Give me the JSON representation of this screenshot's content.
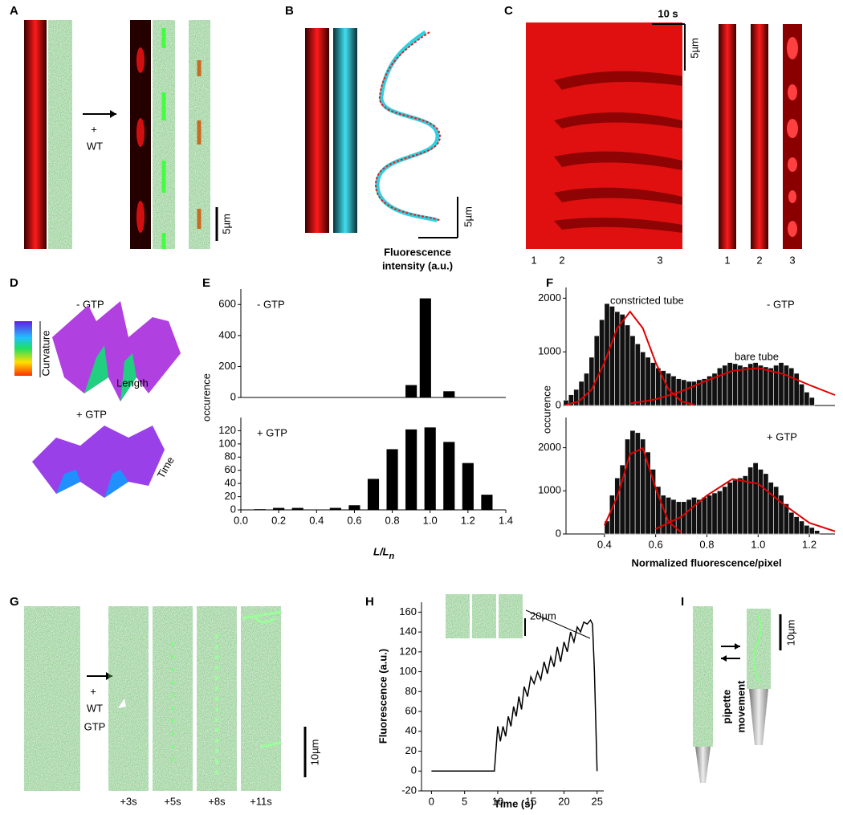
{
  "panels": {
    "a": {
      "letter": "A",
      "plus": "+",
      "treatment": "WT",
      "scale": "5µm"
    },
    "b": {
      "letter": "B",
      "scale": "5µm",
      "axis_label_1": "Fluorescence",
      "axis_label_2": "intensity (a.u.)"
    },
    "c": {
      "letter": "C",
      "time_scale": "10 s",
      "scale": "5µm",
      "kymo_marks": [
        "1",
        "2",
        "3"
      ],
      "strip_labels": [
        "1",
        "2",
        "3"
      ]
    },
    "d": {
      "letter": "D",
      "minus": "- GTP",
      "plus": "+ GTP",
      "colorbar": "Curvature",
      "length": "Length",
      "time": "Time"
    },
    "e": {
      "letter": "E",
      "ylabel": "occurence"
    },
    "f": {
      "letter": "F",
      "ylabel": "occurence"
    },
    "g": {
      "letter": "G",
      "plus": "+",
      "treatment": "WT",
      "nucleotide": "GTP",
      "scale": "10µm",
      "times": [
        "+3s",
        "+5s",
        "+8s",
        "+11s"
      ]
    },
    "h": {
      "letter": "H"
    },
    "i": {
      "letter": "I",
      "scale": "10µm",
      "caption_1": "pipette",
      "caption_2": "movement"
    }
  },
  "chart_data": [
    {
      "type": "bar",
      "annotation": "- GTP",
      "color": "#000",
      "x": [
        0.9,
        0.975,
        1.1
      ],
      "values": [
        80,
        640,
        40
      ],
      "xlim": [
        0,
        1.4
      ],
      "ylim": [
        0,
        700
      ],
      "yticks": [
        0,
        200,
        400,
        600
      ]
    },
    {
      "type": "bar",
      "annotation": "+ GTP",
      "color": "#000",
      "x": [
        0.1,
        0.2,
        0.3,
        0.5,
        0.6,
        0.7,
        0.8,
        0.9,
        1.0,
        1.1,
        1.2,
        1.3
      ],
      "values": [
        1,
        3,
        3,
        3,
        7,
        47,
        92,
        122,
        125,
        103,
        71,
        23
      ],
      "xlim": [
        0,
        1.4
      ],
      "ylim": [
        0,
        140
      ],
      "yticks": [
        0,
        20,
        40,
        60,
        80,
        100,
        120
      ],
      "xticks": [
        {
          "value": 0,
          "label": "0.0"
        },
        {
          "value": 0.2,
          "label": "0.2"
        },
        {
          "value": 0.4,
          "label": "0.4"
        },
        {
          "value": 0.6,
          "label": "0.6"
        },
        {
          "value": 0.8,
          "label": "0.8"
        },
        {
          "value": 1,
          "label": "1.0"
        },
        {
          "value": 1.2,
          "label": "1.2"
        },
        {
          "value": 1.4,
          "label": "1.4"
        }
      ],
      "xlabel": "L/L",
      "xlabel_subscript": "n"
    },
    {
      "type": "histogram",
      "annotation": "- GTP",
      "notes": [
        "constricted tube",
        "bare tube"
      ],
      "color": "#111",
      "bins": [
        0.24,
        0.26,
        0.28,
        0.3,
        0.32,
        0.34,
        0.36,
        0.38,
        0.4,
        0.42,
        0.44,
        0.46,
        0.48,
        0.5,
        0.52,
        0.54,
        0.56,
        0.58,
        0.6,
        0.62,
        0.64,
        0.66,
        0.68,
        0.7,
        0.72,
        0.74,
        0.76,
        0.78,
        0.8,
        0.82,
        0.84,
        0.86,
        0.88,
        0.9,
        0.92,
        0.94,
        0.96,
        0.98,
        1.0,
        1.02,
        1.04,
        1.06,
        1.08,
        1.1,
        1.12,
        1.14,
        1.16,
        1.18,
        1.2,
        1.22
      ],
      "values": [
        100,
        200,
        300,
        450,
        600,
        900,
        1300,
        1600,
        1900,
        1850,
        1750,
        1700,
        1500,
        1300,
        1150,
        1000,
        900,
        800,
        700,
        650,
        600,
        550,
        500,
        480,
        450,
        450,
        480,
        500,
        550,
        600,
        700,
        750,
        800,
        780,
        750,
        720,
        780,
        800,
        750,
        720,
        700,
        750,
        800,
        750,
        700,
        600,
        400,
        250,
        150
      ],
      "fit_curves": [
        {
          "color": "#e00000",
          "x": [
            0.25,
            0.3,
            0.35,
            0.4,
            0.45,
            0.5,
            0.55,
            0.6,
            0.65,
            0.7,
            0.75
          ],
          "values": [
            13,
            77,
            300,
            800,
            1440,
            1750,
            1440,
            800,
            300,
            77,
            13
          ]
        },
        {
          "color": "#e00000",
          "x": [
            0.5,
            0.6,
            0.7,
            0.8,
            0.9,
            1.0,
            1.1,
            1.2,
            1.3
          ],
          "values": [
            39,
            115,
            263,
            467,
            646,
            697,
            585,
            382,
            195
          ]
        }
      ],
      "xlim": [
        0.25,
        1.3
      ],
      "ylim": [
        0,
        2200
      ],
      "yticks": [
        0,
        1000,
        2000
      ]
    },
    {
      "type": "histogram",
      "annotation": "+ GTP",
      "color": "#111",
      "bins": [
        0.4,
        0.42,
        0.44,
        0.46,
        0.48,
        0.5,
        0.52,
        0.54,
        0.56,
        0.58,
        0.6,
        0.62,
        0.64,
        0.66,
        0.68,
        0.7,
        0.72,
        0.74,
        0.76,
        0.78,
        0.8,
        0.82,
        0.84,
        0.86,
        0.88,
        0.9,
        0.92,
        0.94,
        0.96,
        0.98,
        1.0,
        1.02,
        1.04,
        1.06,
        1.08,
        1.1,
        1.12,
        1.14,
        1.16,
        1.18,
        1.2,
        1.22,
        1.24
      ],
      "values": [
        300,
        900,
        1300,
        1600,
        2200,
        2400,
        2350,
        2200,
        1900,
        1500,
        1100,
        900,
        850,
        800,
        750,
        750,
        800,
        850,
        800,
        850,
        900,
        950,
        1000,
        1100,
        1200,
        1250,
        1300,
        1350,
        1550,
        1650,
        1500,
        1400,
        1200,
        1100,
        900,
        700,
        500,
        400,
        300,
        200,
        150,
        80
      ],
      "fit_curves": [
        {
          "color": "#e00000",
          "x": [
            0.4,
            0.45,
            0.5,
            0.55,
            0.6,
            0.65,
            0.7
          ],
          "values": [
            200,
            863,
            1853,
            1986,
            1063,
            284,
            38
          ]
        },
        {
          "color": "#e00000",
          "x": [
            0.6,
            0.7,
            0.8,
            0.9,
            1.0,
            1.1,
            1.2,
            1.3
          ],
          "values": [
            116,
            401,
            893,
            1274,
            1166,
            684,
            257,
            62
          ]
        }
      ],
      "xlim": [
        0.25,
        1.3
      ],
      "ylim": [
        0,
        2700
      ],
      "yticks": [
        0,
        1000,
        2000
      ],
      "xticks": [
        {
          "value": 0.4,
          "label": "0.4"
        },
        {
          "value": 0.6,
          "label": "0.6"
        },
        {
          "value": 0.8,
          "label": "0.8"
        },
        {
          "value": 1,
          "label": "1.0"
        },
        {
          "value": 1.2,
          "label": "1.2"
        }
      ],
      "xlabel": "Normalized fluorescence/pixel"
    },
    {
      "type": "line",
      "annotation": "20µm",
      "color": "#000",
      "xlabel": "Time (s)",
      "ylabel": "Fluorescence (a.u.)",
      "x": [
        0,
        9.5,
        10,
        10.4,
        10.8,
        11.2,
        11.6,
        12,
        12.4,
        12.8,
        13.2,
        13.6,
        14,
        14.5,
        15,
        15.5,
        16,
        16.5,
        17,
        17.5,
        18,
        18.5,
        19,
        19.5,
        20,
        20.5,
        21,
        21.5,
        22,
        22.5,
        23,
        23.5,
        24,
        24.3,
        24.6,
        25
      ],
      "values": [
        0,
        0,
        45,
        30,
        45,
        35,
        55,
        45,
        65,
        55,
        75,
        62,
        85,
        75,
        95,
        88,
        100,
        92,
        110,
        98,
        115,
        105,
        125,
        110,
        130,
        120,
        140,
        130,
        145,
        140,
        150,
        148,
        152,
        148,
        100,
        0
      ],
      "xlim": [
        -1.5,
        26
      ],
      "ylim": [
        -20,
        170
      ],
      "xticks": [
        0,
        5,
        10,
        15,
        20,
        25
      ],
      "yticks": [
        -20,
        0,
        20,
        40,
        60,
        80,
        100,
        120,
        140,
        160
      ]
    }
  ]
}
